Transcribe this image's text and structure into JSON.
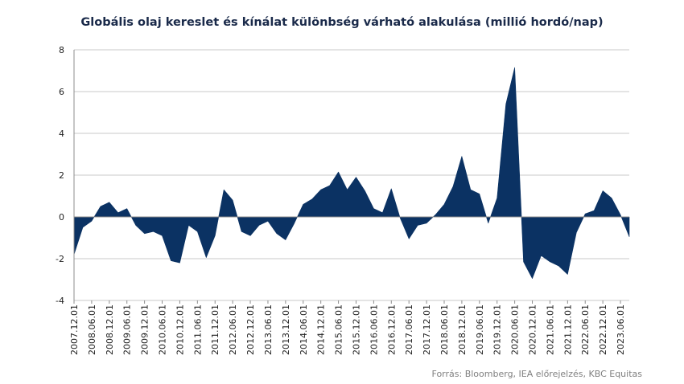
{
  "chart_data": {
    "type": "area",
    "title": "Globális olaj kereslet és kínálat különbség várható alakulása (millió hordó/nap)",
    "xlabel": "",
    "ylabel": "",
    "ylim": [
      -4,
      8
    ],
    "yticks": [
      -4,
      -2,
      0,
      2,
      4,
      6,
      8
    ],
    "grid": true,
    "legend": "none",
    "fill_color": "#0b3263",
    "gridline_color": "#c8c8c8",
    "tick_labels": [
      "2007.12.01",
      "2008.06.01",
      "2008.12.01",
      "2009.06.01",
      "2009.12.01",
      "2010.06.01",
      "2010.12.01",
      "2011.06.01",
      "2011.12.01",
      "2012.06.01",
      "2012.12.01",
      "2013.06.01",
      "2013.12.01",
      "2014.06.01",
      "2014.12.01",
      "2015.06.01",
      "2015.12.01",
      "2016.06.01",
      "2016.12.01",
      "2017.06.01",
      "2017.12.01",
      "2018.06.01",
      "2018.12.01",
      "2019.06.01",
      "2019.12.01",
      "2020.06.01",
      "2020.12.01",
      "2021.06.01",
      "2021.12.01",
      "2022.06.01",
      "2022.12.01",
      "2023.06.01"
    ],
    "series": [
      {
        "name": "",
        "x": [
          "2007.12",
          "2008.03",
          "2008.06",
          "2008.09",
          "2008.12",
          "2009.03",
          "2009.06",
          "2009.09",
          "2009.12",
          "2010.03",
          "2010.06",
          "2010.09",
          "2010.12",
          "2011.03",
          "2011.06",
          "2011.09",
          "2011.12",
          "2012.03",
          "2012.06",
          "2012.09",
          "2012.12",
          "2013.03",
          "2013.06",
          "2013.09",
          "2013.12",
          "2014.03",
          "2014.06",
          "2014.09",
          "2014.12",
          "2015.03",
          "2015.06",
          "2015.09",
          "2015.12",
          "2016.03",
          "2016.06",
          "2016.09",
          "2016.12",
          "2017.03",
          "2017.06",
          "2017.09",
          "2017.12",
          "2018.03",
          "2018.06",
          "2018.09",
          "2018.12",
          "2019.03",
          "2019.06",
          "2019.09",
          "2019.12",
          "2020.03",
          "2020.06",
          "2020.09",
          "2020.12",
          "2021.03",
          "2021.06",
          "2021.09",
          "2021.12",
          "2022.03",
          "2022.06",
          "2022.09",
          "2022.12",
          "2023.03",
          "2023.06",
          "2023.09"
        ],
        "values": [
          -1.8,
          -0.5,
          -0.2,
          0.5,
          0.7,
          0.2,
          0.4,
          -0.4,
          -0.8,
          -0.7,
          -0.9,
          -2.1,
          -2.2,
          -0.4,
          -0.7,
          -1.95,
          -0.9,
          1.3,
          0.8,
          -0.7,
          -0.9,
          -0.4,
          -0.2,
          -0.8,
          -1.1,
          -0.3,
          0.6,
          0.85,
          1.3,
          1.5,
          2.15,
          1.3,
          1.9,
          1.25,
          0.4,
          0.2,
          1.35,
          -0.05,
          -1.05,
          -0.4,
          -0.3,
          0.1,
          0.6,
          1.45,
          2.9,
          1.3,
          1.1,
          -0.3,
          0.9,
          5.4,
          7.15,
          -2.15,
          -2.95,
          -1.85,
          -2.15,
          -2.35,
          -2.75,
          -0.75,
          0.15,
          0.3,
          1.25,
          0.9,
          0.1,
          -0.95
        ]
      }
    ]
  },
  "source": "Forrás: Bloomberg,  IEA előrejelzés,  KBC Equitas"
}
